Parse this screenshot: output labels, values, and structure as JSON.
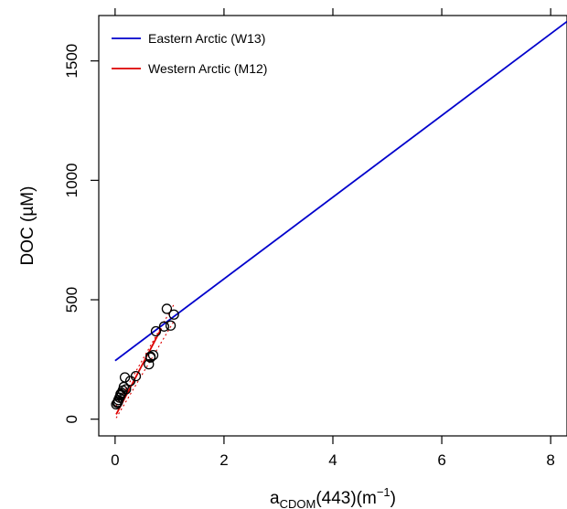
{
  "chart_data": {
    "type": "scatter",
    "ylabel": "DOC (µM)",
    "xlabel": "a_CDOM(443)(m⁻¹)",
    "xlabel_parts": {
      "base": "a",
      "sub": "CDOM",
      "mid": "(443)(m",
      "sup": "−1",
      "end": ")"
    },
    "xlim": [
      -0.3,
      8.3
    ],
    "ylim": [
      -70,
      1690
    ],
    "x_ticks": [
      0,
      2,
      4,
      6,
      8
    ],
    "y_ticks": [
      0,
      500,
      1000,
      1500
    ],
    "x_tick_labels": [
      "0",
      "2",
      "4",
      "6",
      "8"
    ],
    "y_tick_labels": [
      "0",
      "500",
      "1000",
      "1500"
    ],
    "grid": false,
    "legend_position": "top-left",
    "series": [
      {
        "name": "Eastern Arctic (W13)",
        "kind": "line",
        "color": "#0000cc",
        "x": [
          0,
          8.3
        ],
        "y": [
          245,
          1665
        ]
      },
      {
        "name": "Western Arctic (M12)",
        "kind": "line",
        "color": "#dd0000",
        "x": [
          0.02,
          0.85
        ],
        "y": [
          20,
          380
        ]
      }
    ],
    "confidence_band": {
      "color": "#dd0000",
      "style": "dotted",
      "lower": {
        "x": [
          0.02,
          1.08
        ],
        "y": [
          5,
          410
        ]
      },
      "upper": {
        "x": [
          0.02,
          1.08
        ],
        "y": [
          55,
          480
        ]
      }
    },
    "points": {
      "marker": "open-circle",
      "color": "#000000",
      "x": [
        0.02,
        0.04,
        0.05,
        0.06,
        0.08,
        0.1,
        0.12,
        0.14,
        0.16,
        0.1,
        0.18,
        0.2,
        0.28,
        0.38,
        0.62,
        0.65,
        0.7,
        0.65,
        0.75,
        0.9,
        0.95,
        1.02,
        1.08
      ],
      "y": [
        62,
        68,
        72,
        80,
        90,
        100,
        110,
        120,
        135,
        105,
        175,
        125,
        160,
        180,
        230,
        258,
        268,
        262,
        368,
        388,
        462,
        392,
        438
      ]
    }
  }
}
